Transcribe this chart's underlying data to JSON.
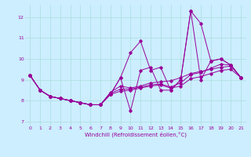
{
  "xlabel": "Windchill (Refroidissement éolien,°C)",
  "background_color": "#cceeff",
  "grid_color": "#aadddd",
  "line_color": "#990099",
  "xlim": [
    -0.5,
    21.5
  ],
  "ylim": [
    6.8,
    12.6
  ],
  "yticks": [
    7,
    8,
    9,
    10,
    11,
    12
  ],
  "xticks": [
    0,
    1,
    2,
    3,
    4,
    5,
    6,
    7,
    8,
    9,
    10,
    11,
    12,
    13,
    14,
    15,
    16,
    17,
    18,
    19,
    20,
    21
  ],
  "series": [
    [
      9.2,
      8.5,
      8.2,
      8.1,
      8.0,
      7.9,
      7.8,
      7.8,
      8.3,
      9.1,
      10.3,
      10.85,
      9.45,
      9.6,
      8.5,
      9.0,
      12.3,
      11.7,
      9.9,
      10.0,
      9.7,
      9.1
    ],
    [
      9.2,
      8.5,
      8.2,
      8.1,
      8.0,
      7.9,
      7.8,
      7.8,
      8.3,
      9.1,
      7.5,
      9.45,
      9.6,
      8.5,
      8.5,
      9.0,
      12.3,
      9.0,
      9.9,
      10.0,
      9.7,
      9.1
    ],
    [
      9.2,
      8.5,
      8.2,
      8.1,
      8.0,
      7.9,
      7.8,
      7.8,
      8.4,
      8.7,
      8.6,
      8.7,
      8.85,
      8.9,
      8.95,
      9.1,
      9.3,
      9.4,
      9.5,
      9.6,
      9.65,
      9.1
    ],
    [
      9.2,
      8.5,
      8.2,
      8.1,
      8.0,
      7.9,
      7.8,
      7.8,
      8.35,
      8.55,
      8.55,
      8.65,
      8.75,
      8.8,
      8.65,
      8.85,
      9.25,
      9.35,
      9.55,
      9.75,
      9.7,
      9.1
    ],
    [
      9.2,
      8.5,
      8.2,
      8.1,
      8.0,
      7.9,
      7.8,
      7.8,
      8.3,
      8.45,
      8.5,
      8.6,
      8.7,
      8.75,
      8.6,
      8.7,
      9.05,
      9.15,
      9.3,
      9.45,
      9.5,
      9.1
    ]
  ]
}
